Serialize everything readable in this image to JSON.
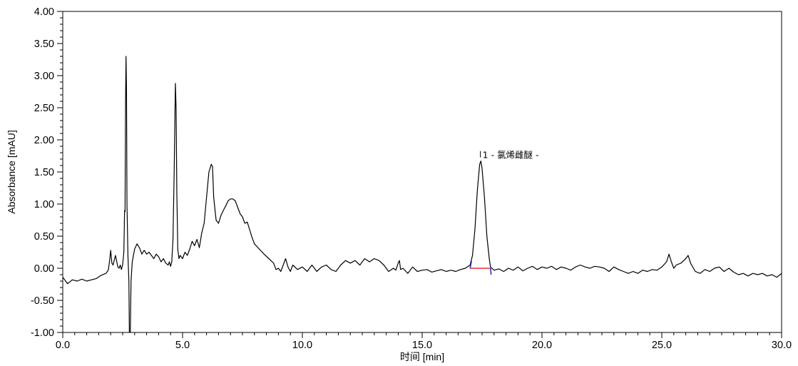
{
  "chart_data": {
    "type": "line",
    "xlabel": "时间 [min]",
    "ylabel": "Absorbance [mAU]",
    "xlim": [
      0,
      30
    ],
    "ylim": [
      -1,
      4
    ],
    "x_ticks": [
      "0.0",
      "5.0",
      "10.0",
      "15.0",
      "20.0",
      "25.0",
      "30.0"
    ],
    "y_ticks": [
      "4.00",
      "3.50",
      "3.00",
      "2.50",
      "2.00",
      "1.50",
      "1.00",
      "0.50",
      "0.00",
      "-0.50",
      "-1.00"
    ],
    "grid": false,
    "colors": {
      "trace": "#000000",
      "baseline": "#e00000",
      "marker": "#2222cc"
    },
    "peak_annotation": {
      "label": "1 - 氯烯雌醚 -",
      "retention_time": 17.43,
      "height": 1.67
    },
    "integration_baseline": {
      "start": [
        17.0,
        0.0
      ],
      "end": [
        17.85,
        0.0
      ]
    },
    "series": [
      {
        "points": [
          [
            0.0,
            -0.14
          ],
          [
            0.2,
            -0.24
          ],
          [
            0.4,
            -0.18
          ],
          [
            0.6,
            -0.2
          ],
          [
            0.8,
            -0.17
          ],
          [
            1.0,
            -0.2
          ],
          [
            1.2,
            -0.18
          ],
          [
            1.4,
            -0.16
          ],
          [
            1.6,
            -0.11
          ],
          [
            1.8,
            -0.08
          ],
          [
            1.9,
            -0.03
          ],
          [
            1.95,
            0.1
          ],
          [
            2.0,
            0.28
          ],
          [
            2.05,
            0.08
          ],
          [
            2.1,
            0.05
          ],
          [
            2.2,
            0.2
          ],
          [
            2.3,
            0.02
          ],
          [
            2.35,
            0.0
          ],
          [
            2.4,
            0.05
          ],
          [
            2.45,
            -0.02
          ],
          [
            2.5,
            0.06
          ],
          [
            2.55,
            0.25
          ],
          [
            2.58,
            0.9
          ],
          [
            2.6,
            0.88
          ],
          [
            2.62,
            2.5
          ],
          [
            2.64,
            3.3
          ],
          [
            2.66,
            2.8
          ],
          [
            2.68,
            1.0
          ],
          [
            2.72,
            0.2
          ],
          [
            2.76,
            -0.2
          ],
          [
            2.78,
            -1.0
          ],
          [
            2.82,
            -1.0
          ],
          [
            2.85,
            -0.2
          ],
          [
            2.9,
            0.1
          ],
          [
            3.0,
            0.3
          ],
          [
            3.1,
            0.38
          ],
          [
            3.2,
            0.32
          ],
          [
            3.3,
            0.22
          ],
          [
            3.4,
            0.28
          ],
          [
            3.5,
            0.22
          ],
          [
            3.6,
            0.25
          ],
          [
            3.7,
            0.2
          ],
          [
            3.8,
            0.15
          ],
          [
            3.9,
            0.22
          ],
          [
            4.0,
            0.18
          ],
          [
            4.1,
            0.1
          ],
          [
            4.2,
            0.15
          ],
          [
            4.3,
            0.08
          ],
          [
            4.4,
            0.05
          ],
          [
            4.45,
            0.1
          ],
          [
            4.5,
            0.03
          ],
          [
            4.55,
            0.1
          ],
          [
            4.6,
            0.45
          ],
          [
            4.65,
            1.5
          ],
          [
            4.7,
            2.88
          ],
          [
            4.73,
            2.5
          ],
          [
            4.76,
            1.2
          ],
          [
            4.8,
            0.3
          ],
          [
            4.85,
            0.15
          ],
          [
            4.9,
            0.2
          ],
          [
            5.0,
            0.15
          ],
          [
            5.1,
            0.25
          ],
          [
            5.2,
            0.2
          ],
          [
            5.3,
            0.3
          ],
          [
            5.4,
            0.42
          ],
          [
            5.5,
            0.35
          ],
          [
            5.6,
            0.45
          ],
          [
            5.7,
            0.32
          ],
          [
            5.8,
            0.55
          ],
          [
            5.9,
            0.7
          ],
          [
            6.0,
            1.1
          ],
          [
            6.1,
            1.5
          ],
          [
            6.2,
            1.62
          ],
          [
            6.25,
            1.58
          ],
          [
            6.3,
            1.1
          ],
          [
            6.4,
            0.75
          ],
          [
            6.5,
            0.7
          ],
          [
            6.6,
            0.82
          ],
          [
            6.7,
            0.9
          ],
          [
            6.8,
            0.97
          ],
          [
            6.9,
            1.05
          ],
          [
            7.0,
            1.08
          ],
          [
            7.1,
            1.08
          ],
          [
            7.2,
            1.05
          ],
          [
            7.3,
            0.95
          ],
          [
            7.4,
            0.85
          ],
          [
            7.5,
            0.8
          ],
          [
            7.6,
            0.7
          ],
          [
            7.7,
            0.72
          ],
          [
            7.8,
            0.6
          ],
          [
            7.9,
            0.48
          ],
          [
            8.0,
            0.38
          ],
          [
            8.2,
            0.3
          ],
          [
            8.4,
            0.22
          ],
          [
            8.6,
            0.15
          ],
          [
            8.8,
            0.08
          ],
          [
            8.9,
            -0.02
          ],
          [
            9.0,
            0.0
          ],
          [
            9.1,
            -0.05
          ],
          [
            9.2,
            0.05
          ],
          [
            9.3,
            0.15
          ],
          [
            9.4,
            0.02
          ],
          [
            9.5,
            -0.05
          ],
          [
            9.6,
            0.05
          ],
          [
            9.8,
            -0.02
          ],
          [
            10.0,
            0.02
          ],
          [
            10.2,
            -0.05
          ],
          [
            10.4,
            0.05
          ],
          [
            10.6,
            -0.05
          ],
          [
            10.8,
            0.02
          ],
          [
            11.0,
            0.05
          ],
          [
            11.2,
            -0.02
          ],
          [
            11.4,
            -0.05
          ],
          [
            11.6,
            0.05
          ],
          [
            11.8,
            0.12
          ],
          [
            12.0,
            0.08
          ],
          [
            12.2,
            0.12
          ],
          [
            12.4,
            0.05
          ],
          [
            12.6,
            0.15
          ],
          [
            12.8,
            0.1
          ],
          [
            13.0,
            0.15
          ],
          [
            13.2,
            0.12
          ],
          [
            13.4,
            0.05
          ],
          [
            13.6,
            -0.05
          ],
          [
            13.8,
            0.0
          ],
          [
            13.9,
            -0.03
          ],
          [
            14.0,
            0.08
          ],
          [
            14.05,
            0.12
          ],
          [
            14.1,
            -0.02
          ],
          [
            14.2,
            0.0
          ],
          [
            14.4,
            -0.08
          ],
          [
            14.6,
            0.02
          ],
          [
            14.8,
            -0.05
          ],
          [
            15.0,
            -0.03
          ],
          [
            15.2,
            -0.02
          ],
          [
            15.4,
            -0.06
          ],
          [
            15.6,
            -0.04
          ],
          [
            15.8,
            -0.02
          ],
          [
            16.0,
            -0.05
          ],
          [
            16.2,
            -0.03
          ],
          [
            16.4,
            -0.05
          ],
          [
            16.6,
            -0.02
          ],
          [
            16.8,
            0.0
          ],
          [
            17.0,
            0.05
          ],
          [
            17.1,
            0.2
          ],
          [
            17.2,
            0.6
          ],
          [
            17.3,
            1.2
          ],
          [
            17.4,
            1.62
          ],
          [
            17.45,
            1.67
          ],
          [
            17.5,
            1.55
          ],
          [
            17.6,
            1.1
          ],
          [
            17.7,
            0.5
          ],
          [
            17.8,
            0.15
          ],
          [
            17.85,
            0.02
          ],
          [
            18.0,
            -0.03
          ],
          [
            18.2,
            -0.01
          ],
          [
            18.4,
            -0.05
          ],
          [
            18.6,
            0.0
          ],
          [
            18.8,
            -0.03
          ],
          [
            19.0,
            0.02
          ],
          [
            19.2,
            -0.04
          ],
          [
            19.4,
            0.0
          ],
          [
            19.6,
            0.03
          ],
          [
            19.8,
            -0.02
          ],
          [
            20.0,
            0.02
          ],
          [
            20.2,
            0.0
          ],
          [
            20.4,
            0.03
          ],
          [
            20.6,
            -0.02
          ],
          [
            20.8,
            0.02
          ],
          [
            21.0,
            0.0
          ],
          [
            21.2,
            -0.03
          ],
          [
            21.4,
            0.02
          ],
          [
            21.6,
            0.05
          ],
          [
            21.8,
            0.02
          ],
          [
            22.0,
            0.0
          ],
          [
            22.2,
            0.03
          ],
          [
            22.4,
            0.02
          ],
          [
            22.6,
            0.0
          ],
          [
            22.8,
            -0.05
          ],
          [
            23.0,
            0.02
          ],
          [
            23.2,
            -0.02
          ],
          [
            23.4,
            -0.05
          ],
          [
            23.6,
            -0.08
          ],
          [
            23.8,
            -0.05
          ],
          [
            24.0,
            -0.08
          ],
          [
            24.2,
            -0.03
          ],
          [
            24.4,
            -0.05
          ],
          [
            24.6,
            -0.02
          ],
          [
            24.8,
            -0.03
          ],
          [
            25.0,
            0.02
          ],
          [
            25.2,
            0.1
          ],
          [
            25.3,
            0.22
          ],
          [
            25.4,
            0.1
          ],
          [
            25.5,
            0.0
          ],
          [
            25.6,
            0.05
          ],
          [
            25.8,
            0.08
          ],
          [
            26.0,
            0.15
          ],
          [
            26.1,
            0.2
          ],
          [
            26.2,
            0.08
          ],
          [
            26.4,
            -0.05
          ],
          [
            26.6,
            -0.08
          ],
          [
            26.8,
            -0.02
          ],
          [
            27.0,
            -0.05
          ],
          [
            27.2,
            0.0
          ],
          [
            27.4,
            0.02
          ],
          [
            27.6,
            -0.05
          ],
          [
            27.8,
            0.0
          ],
          [
            28.0,
            -0.06
          ],
          [
            28.2,
            -0.1
          ],
          [
            28.4,
            -0.08
          ],
          [
            28.6,
            -0.12
          ],
          [
            28.8,
            -0.08
          ],
          [
            29.0,
            -0.1
          ],
          [
            29.2,
            -0.08
          ],
          [
            29.4,
            -0.12
          ],
          [
            29.6,
            -0.1
          ],
          [
            29.8,
            -0.14
          ],
          [
            30.0,
            -0.08
          ]
        ]
      }
    ]
  }
}
